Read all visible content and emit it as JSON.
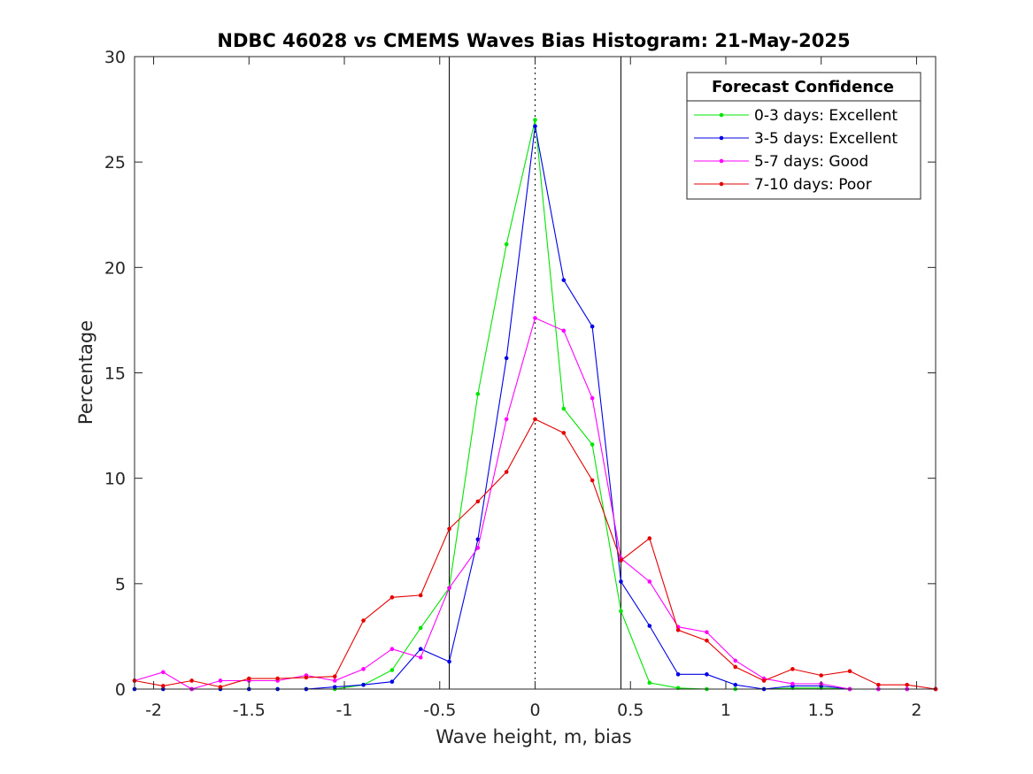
{
  "chart_data": {
    "type": "line",
    "title": "NDBC 46028 vs CMEMS Waves Bias Histogram: 21-May-2025",
    "xlabel": "Wave height, m, bias",
    "ylabel": "Percentage",
    "xlim": [
      -2.1,
      2.1
    ],
    "ylim": [
      0,
      30
    ],
    "xticks": [
      -2,
      -1.5,
      -1,
      -0.5,
      0,
      0.5,
      1,
      1.5,
      2
    ],
    "xtick_labels": [
      "-2",
      "-1.5",
      "-1",
      "-0.5",
      "0",
      "0.5",
      "1",
      "1.5",
      "2"
    ],
    "yticks": [
      0,
      5,
      10,
      15,
      20,
      25,
      30
    ],
    "ytick_labels": [
      "0",
      "5",
      "10",
      "15",
      "20",
      "25",
      "30"
    ],
    "reference_lines": [
      {
        "x": -0.45,
        "style": "solid"
      },
      {
        "x": 0,
        "style": "dotted"
      },
      {
        "x": 0.45,
        "style": "solid"
      }
    ],
    "x": [
      -2.1,
      -1.95,
      -1.8,
      -1.65,
      -1.5,
      -1.35,
      -1.2,
      -1.05,
      -0.9,
      -0.75,
      -0.6,
      -0.45,
      -0.3,
      -0.15,
      0,
      0.15,
      0.3,
      0.45,
      0.6,
      0.75,
      0.9,
      1.05,
      1.2,
      1.35,
      1.5,
      1.65,
      1.8,
      1.95,
      2.1
    ],
    "series": [
      {
        "name": "0-3 days: Excellent",
        "color": "#00e600",
        "values": [
          0,
          0,
          0,
          0,
          0,
          0,
          0,
          0,
          0.2,
          0.9,
          2.9,
          4.8,
          14,
          21.1,
          27,
          13.3,
          11.6,
          3.7,
          0.3,
          0.05,
          0,
          0,
          0,
          0.05,
          0.05,
          0,
          0,
          0,
          0
        ]
      },
      {
        "name": "3-5 days: Excellent",
        "color": "#0000e6",
        "values": [
          0,
          0,
          0,
          0,
          0,
          0,
          0,
          0.1,
          0.2,
          0.35,
          1.9,
          1.3,
          7.1,
          15.7,
          26.7,
          19.4,
          17.2,
          5.1,
          3,
          0.7,
          0.7,
          0.2,
          0,
          0.15,
          0.15,
          0,
          0,
          0,
          0
        ]
      },
      {
        "name": "5-7 days: Good",
        "color": "#ff00ff",
        "values": [
          0.4,
          0.8,
          0,
          0.4,
          0.4,
          0.4,
          0.65,
          0.4,
          0.95,
          1.9,
          1.5,
          4.8,
          6.7,
          12.8,
          17.6,
          17,
          13.8,
          6.2,
          5.1,
          2.95,
          2.7,
          1.35,
          0.5,
          0.25,
          0.25,
          0,
          0,
          0,
          0
        ]
      },
      {
        "name": "7-10 days: Poor",
        "color": "#e60000",
        "values": [
          0.4,
          0.15,
          0.4,
          0.1,
          0.5,
          0.5,
          0.55,
          0.6,
          3.25,
          4.35,
          4.45,
          7.6,
          8.9,
          10.3,
          12.8,
          12.15,
          9.9,
          6.1,
          7.15,
          2.8,
          2.3,
          1.05,
          0.4,
          0.95,
          0.65,
          0.85,
          0.2,
          0.2,
          0
        ]
      }
    ],
    "legend": {
      "title": "Forecast Confidence",
      "position": "top-right"
    },
    "grid": false
  }
}
